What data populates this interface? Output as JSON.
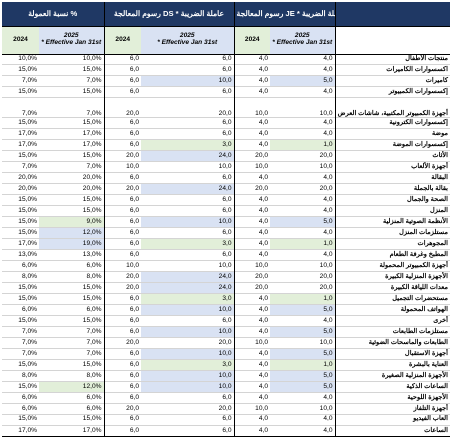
{
  "header": {
    "groups": [
      "نسبة العمولة %",
      "رسوم المعالجة DS * عاملة الضريبة",
      "رسوم المعالجة JE * عاملة الضريبة"
    ],
    "year_current": "2024",
    "year_new": "2025",
    "effective_note": "* Effective Jan 31st"
  },
  "rows": [
    {
      "label": "منتجات الأطفال",
      "c2024": "10,0%",
      "c2025": "10,0%",
      "d2024": "6,0",
      "d2025": "6,0",
      "j2024": "4,0",
      "j2025": "4,0"
    },
    {
      "label": "اكسسوارات الكاميرات",
      "c2024": "15,0%",
      "c2025": "15,0%",
      "d2024": "6,0",
      "d2025": "6,0",
      "j2024": "4,0",
      "j2025": "4,0"
    },
    {
      "label": "كاميرات",
      "c2024": "7,0%",
      "c2025": "7,0%",
      "d2024": "6,0",
      "d2025": "10,0",
      "j2024": "4,0",
      "j2025": "5,0",
      "hl": {
        "d2025": "b",
        "j2025": "b"
      }
    },
    {
      "label": "إكسسوارات الكمبيوتر",
      "c2024": "15,0%",
      "c2025": "15,0%",
      "d2024": "6,0",
      "d2025": "6,0",
      "j2024": "4,0",
      "j2025": "4,0"
    },
    {
      "label": "أجهزة الكمبيوتر المكتبية، شاشات العرض",
      "c2024": "7,0%",
      "c2025": "7,0%",
      "d2024": "20,0",
      "d2025": "20,0",
      "j2024": "10,0",
      "j2025": "10,0",
      "tall": true
    },
    {
      "label": "إكسسوارات الكترونية",
      "c2024": "15,0%",
      "c2025": "15,0%",
      "d2024": "6,0",
      "d2025": "6,0",
      "j2024": "4,0",
      "j2025": "4,0"
    },
    {
      "label": "موضة",
      "c2024": "17,0%",
      "c2025": "17,0%",
      "d2024": "6,0",
      "d2025": "6,0",
      "j2024": "4,0",
      "j2025": "4,0"
    },
    {
      "label": "إكسسوارات الموضة",
      "c2024": "17,0%",
      "c2025": "17,0%",
      "d2024": "6,0",
      "d2025": "3,0",
      "j2024": "4,0",
      "j2025": "1,0",
      "hl": {
        "d2025": "g",
        "j2025": "g"
      }
    },
    {
      "label": "الأثاث",
      "c2024": "15,0%",
      "c2025": "15,0%",
      "d2024": "20,0",
      "d2025": "24,0",
      "j2024": "20,0",
      "j2025": "20,0",
      "hl": {
        "d2025": "b"
      }
    },
    {
      "label": "أجهزة الألعاب",
      "c2024": "7,0%",
      "c2025": "7,0%",
      "d2024": "10,0",
      "d2025": "10,0",
      "j2024": "10,0",
      "j2025": "10,0"
    },
    {
      "label": "البقالة",
      "c2024": "20,0%",
      "c2025": "20,0%",
      "d2024": "6,0",
      "d2025": "6,0",
      "j2024": "4,0",
      "j2025": "4,0"
    },
    {
      "label": "بقالة بالجملة",
      "c2024": "20,0%",
      "c2025": "20,0%",
      "d2024": "20,0",
      "d2025": "24,0",
      "j2024": "20,0",
      "j2025": "20,0",
      "hl": {
        "d2025": "b"
      }
    },
    {
      "label": "الصحة والجمال",
      "c2024": "15,0%",
      "c2025": "15,0%",
      "d2024": "6,0",
      "d2025": "6,0",
      "j2024": "4,0",
      "j2025": "4,0"
    },
    {
      "label": "المنزل",
      "c2024": "15,0%",
      "c2025": "15,0%",
      "d2024": "6,0",
      "d2025": "6,0",
      "j2024": "4,0",
      "j2025": "4,0"
    },
    {
      "label": "الأنظمة الصوتية المنزلية",
      "c2024": "15,0%",
      "c2025": "9,0%",
      "d2024": "6,0",
      "d2025": "10,0",
      "j2024": "4,0",
      "j2025": "5,0",
      "hl": {
        "c2025": "g",
        "d2025": "b",
        "j2025": "b"
      }
    },
    {
      "label": "مستلزمات المنزل",
      "c2024": "15,0%",
      "c2025": "12,0%",
      "d2024": "6,0",
      "d2025": "6,0",
      "j2024": "4,0",
      "j2025": "4,0",
      "hl": {
        "c2025": "b"
      }
    },
    {
      "label": "المجوهرات",
      "c2024": "17,0%",
      "c2025": "19,0%",
      "d2024": "6,0",
      "d2025": "3,0",
      "j2024": "4,0",
      "j2025": "1,0",
      "hl": {
        "c2025": "b",
        "d2025": "g",
        "j2025": "g"
      }
    },
    {
      "label": "المطبخ وغرفة الطعام",
      "c2024": "13,0%",
      "c2025": "13,0%",
      "d2024": "6,0",
      "d2025": "6,0",
      "j2024": "4,0",
      "j2025": "4,0"
    },
    {
      "label": "أجهزة الكمبيوتر المحمولة",
      "c2024": "6,0%",
      "c2025": "6,0%",
      "d2024": "10,0",
      "d2025": "10,0",
      "j2024": "10,0",
      "j2025": "10,0"
    },
    {
      "label": "الأجهزة المنزلية الكبيرة",
      "c2024": "8,0%",
      "c2025": "8,0%",
      "d2024": "20,0",
      "d2025": "24,0",
      "j2024": "20,0",
      "j2025": "20,0",
      "hl": {
        "d2025": "b"
      }
    },
    {
      "label": "معدات اللياقة الكبيرة",
      "c2024": "15,0%",
      "c2025": "15,0%",
      "d2024": "20,0",
      "d2025": "24,0",
      "j2024": "20,0",
      "j2025": "20,0",
      "hl": {
        "d2025": "b"
      }
    },
    {
      "label": "مستحضرات التجميل",
      "c2024": "15,0%",
      "c2025": "15,0%",
      "d2024": "6,0",
      "d2025": "3,0",
      "j2024": "4,0",
      "j2025": "1,0",
      "hl": {
        "d2025": "g",
        "j2025": "g"
      }
    },
    {
      "label": "الهواتف المحمولة",
      "c2024": "6,0%",
      "c2025": "6,0%",
      "d2024": "6,0",
      "d2025": "10,0",
      "j2024": "4,0",
      "j2025": "5,0",
      "hl": {
        "d2025": "b",
        "j2025": "b"
      }
    },
    {
      "label": "أخرى",
      "c2024": "15,0%",
      "c2025": "15,0%",
      "d2024": "6,0",
      "d2025": "6,0",
      "j2024": "4,0",
      "j2025": "4,0"
    },
    {
      "label": "مستلزمات الطابعات",
      "c2024": "7,0%",
      "c2025": "7,0%",
      "d2024": "6,0",
      "d2025": "10,0",
      "j2024": "4,0",
      "j2025": "5,0",
      "hl": {
        "d2025": "b",
        "j2025": "b"
      }
    },
    {
      "label": "الطابعات والماسحات الضوئية",
      "c2024": "7,0%",
      "c2025": "7,0%",
      "d2024": "20,0",
      "d2025": "20,0",
      "j2024": "10,0",
      "j2025": "10,0"
    },
    {
      "label": "أجهزة الاستقبال",
      "c2024": "7,0%",
      "c2025": "7,0%",
      "d2024": "6,0",
      "d2025": "10,0",
      "j2024": "4,0",
      "j2025": "5,0",
      "hl": {
        "d2025": "b",
        "j2025": "b"
      }
    },
    {
      "label": "العناية بالبشرة",
      "c2024": "15,0%",
      "c2025": "15,0%",
      "d2024": "6,0",
      "d2025": "3,0",
      "j2024": "4,0",
      "j2025": "1,0",
      "hl": {
        "d2025": "g",
        "j2025": "g"
      }
    },
    {
      "label": "الأجهزة المنزلية الصغيرة",
      "c2024": "8,0%",
      "c2025": "8,0%",
      "d2024": "6,0",
      "d2025": "10,0",
      "j2024": "4,0",
      "j2025": "5,0",
      "hl": {
        "d2025": "b",
        "j2025": "b"
      }
    },
    {
      "label": "الساعات الذكية",
      "c2024": "15,0%",
      "c2025": "12,0%",
      "d2024": "6,0",
      "d2025": "10,0",
      "j2024": "4,0",
      "j2025": "5,0",
      "hl": {
        "c2025": "g",
        "d2025": "b",
        "j2025": "b"
      }
    },
    {
      "label": "الأجهزة اللوحية",
      "c2024": "6,0%",
      "c2025": "6,0%",
      "d2024": "6,0",
      "d2025": "6,0",
      "j2024": "4,0",
      "j2025": "4,0"
    },
    {
      "label": "أجهزة التلفاز",
      "c2024": "6,0%",
      "c2025": "6,0%",
      "d2024": "20,0",
      "d2025": "20,0",
      "j2024": "10,0",
      "j2025": "10,0"
    },
    {
      "label": "ألعاب الفيديو",
      "c2024": "15,0%",
      "c2025": "15,0%",
      "d2024": "6,0",
      "d2025": "6,0",
      "j2024": "4,0",
      "j2025": "4,0"
    },
    {
      "label": "الساعات",
      "c2024": "17,0%",
      "c2025": "17,0%",
      "d2024": "6,0",
      "d2025": "6,0",
      "j2024": "4,0",
      "j2025": "4,0"
    }
  ]
}
